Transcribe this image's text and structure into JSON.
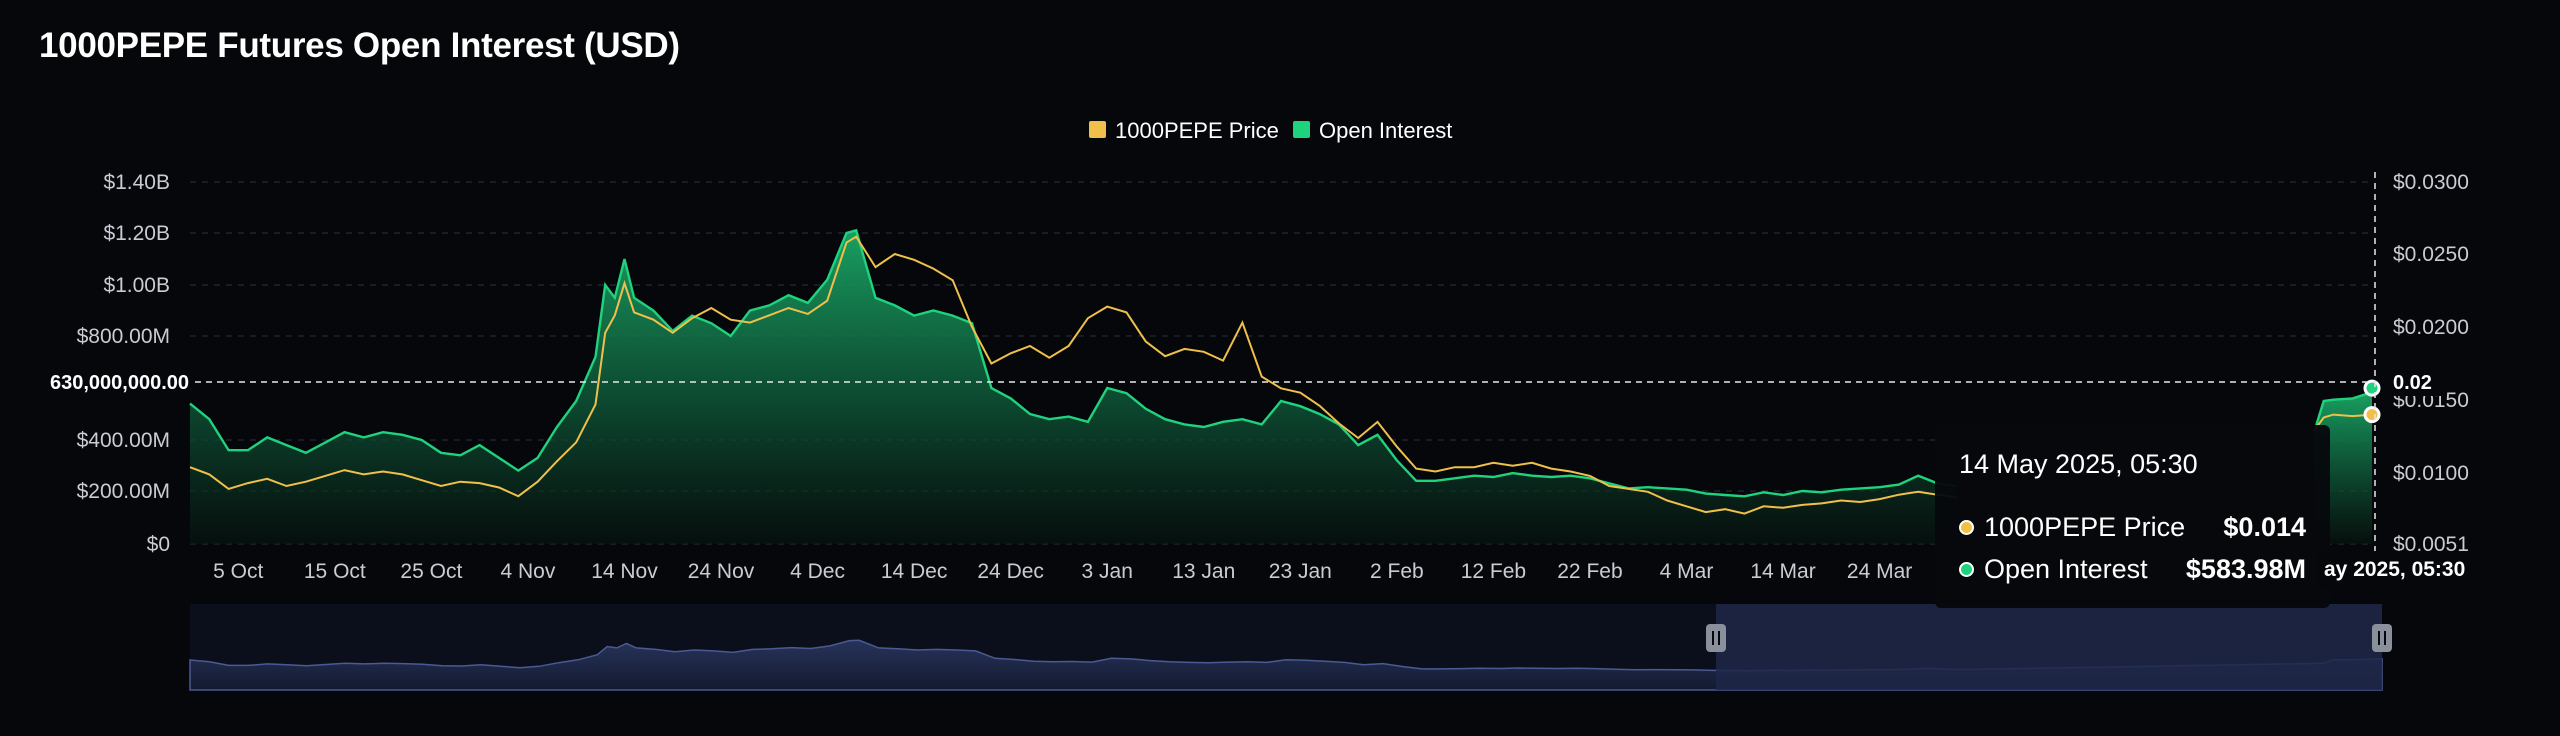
{
  "title": "1000PEPE Futures Open Interest (USD)",
  "legend": [
    {
      "label": "1000PEPE Price",
      "color": "#f0c04a",
      "shape": "square"
    },
    {
      "label": "Open Interest",
      "color": "#1fd27e",
      "shape": "square"
    }
  ],
  "tooltip": {
    "date": "14 May 2025, 05:30",
    "rows": [
      {
        "label": "1000PEPE Price",
        "value": "$0.014",
        "color": "#f0c04a"
      },
      {
        "label": "Open Interest",
        "value": "$583.98M",
        "color": "#1fd27e"
      }
    ]
  },
  "crosshair": {
    "left_label": "630,000,000.00",
    "right_label": "0.02",
    "date_label": "ay 2025, 05:30"
  },
  "chart_data": {
    "type": "line",
    "x_label": "",
    "y_label_left": "",
    "y_label_right": "",
    "x_tick_labels": [
      "5 Oct",
      "15 Oct",
      "25 Oct",
      "4 Nov",
      "14 Nov",
      "24 Nov",
      "4 Dec",
      "14 Dec",
      "24 Dec",
      "3 Jan",
      "13 Jan",
      "23 Jan",
      "2 Feb",
      "12 Feb",
      "22 Feb",
      "4 Mar",
      "14 Mar",
      "24 Mar"
    ],
    "y_left": {
      "tick_values": [
        0,
        200000000,
        400000000,
        800000000,
        1000000000,
        1200000000,
        1400000000
      ],
      "tick_labels": [
        "$0",
        "$200.00M",
        "$400.00M",
        "$800.00M",
        "$1.00B",
        "$1.20B",
        "$1.40B"
      ],
      "range": [
        0,
        1400000000
      ]
    },
    "y_right": {
      "tick_values": [
        0.0051,
        0.01,
        0.015,
        0.02,
        0.025,
        0.03
      ],
      "tick_labels": [
        "$0.0051",
        "$0.0100",
        "$0.0150",
        "$0.0200",
        "$0.0250",
        "$0.0300"
      ],
      "range": [
        0.0051,
        0.03
      ]
    },
    "grid": true,
    "legend_position": "top-center",
    "series": [
      {
        "name": "Open Interest",
        "axis": "left",
        "style": "area",
        "points": [
          [
            "30 Sep",
            540
          ],
          [
            "2 Oct",
            480
          ],
          [
            "4 Oct",
            360
          ],
          [
            "6 Oct",
            360
          ],
          [
            "8 Oct",
            410
          ],
          [
            "10 Oct",
            380
          ],
          [
            "12 Oct",
            350
          ],
          [
            "14 Oct",
            390
          ],
          [
            "16 Oct",
            430
          ],
          [
            "18 Oct",
            410
          ],
          [
            "20 Oct",
            430
          ],
          [
            "22 Oct",
            420
          ],
          [
            "24 Oct",
            400
          ],
          [
            "26 Oct",
            350
          ],
          [
            "28 Oct",
            340
          ],
          [
            "30 Oct",
            380
          ],
          [
            "1 Nov",
            330
          ],
          [
            "3 Nov",
            280
          ],
          [
            "5 Nov",
            330
          ],
          [
            "7 Nov",
            450
          ],
          [
            "9 Nov",
            550
          ],
          [
            "11 Nov",
            720
          ],
          [
            "12 Nov",
            1000
          ],
          [
            "13 Nov",
            950
          ],
          [
            "14 Nov",
            1100
          ],
          [
            "15 Nov",
            950
          ],
          [
            "17 Nov",
            900
          ],
          [
            "19 Nov",
            820
          ],
          [
            "21 Nov",
            880
          ],
          [
            "23 Nov",
            850
          ],
          [
            "25 Nov",
            800
          ],
          [
            "27 Nov",
            900
          ],
          [
            "29 Nov",
            920
          ],
          [
            "1 Dec",
            960
          ],
          [
            "3 Dec",
            930
          ],
          [
            "5 Dec",
            1020
          ],
          [
            "7 Dec",
            1200
          ],
          [
            "8 Dec",
            1210
          ],
          [
            "10 Dec",
            950
          ],
          [
            "12 Dec",
            920
          ],
          [
            "14 Dec",
            880
          ],
          [
            "16 Dec",
            900
          ],
          [
            "18 Dec",
            880
          ],
          [
            "20 Dec",
            850
          ],
          [
            "22 Dec",
            600
          ],
          [
            "24 Dec",
            560
          ],
          [
            "26 Dec",
            500
          ],
          [
            "28 Dec",
            480
          ],
          [
            "30 Dec",
            490
          ],
          [
            "1 Jan",
            470
          ],
          [
            "3 Jan",
            600
          ],
          [
            "5 Jan",
            580
          ],
          [
            "7 Jan",
            520
          ],
          [
            "9 Jan",
            480
          ],
          [
            "11 Jan",
            460
          ],
          [
            "13 Jan",
            450
          ],
          [
            "15 Jan",
            470
          ],
          [
            "17 Jan",
            480
          ],
          [
            "19 Jan",
            460
          ],
          [
            "21 Jan",
            550
          ],
          [
            "23 Jan",
            530
          ],
          [
            "25 Jan",
            500
          ],
          [
            "27 Jan",
            460
          ],
          [
            "29 Jan",
            380
          ],
          [
            "31 Jan",
            420
          ],
          [
            "2 Feb",
            320
          ],
          [
            "4 Feb",
            240
          ],
          [
            "6 Feb",
            240
          ],
          [
            "8 Feb",
            250
          ],
          [
            "10 Feb",
            260
          ],
          [
            "12 Feb",
            255
          ],
          [
            "14 Feb",
            270
          ],
          [
            "16 Feb",
            260
          ],
          [
            "18 Feb",
            255
          ],
          [
            "20 Feb",
            260
          ],
          [
            "22 Feb",
            250
          ],
          [
            "24 Feb",
            230
          ],
          [
            "26 Feb",
            210
          ],
          [
            "28 Feb",
            215
          ],
          [
            "2 Mar",
            210
          ],
          [
            "4 Mar",
            205
          ],
          [
            "6 Mar",
            190
          ],
          [
            "8 Mar",
            185
          ],
          [
            "10 Mar",
            180
          ],
          [
            "12 Mar",
            195
          ],
          [
            "14 Mar",
            185
          ],
          [
            "16 Mar",
            200
          ],
          [
            "18 Mar",
            195
          ],
          [
            "20 Mar",
            205
          ],
          [
            "22 Mar",
            210
          ],
          [
            "24 Mar",
            215
          ],
          [
            "26 Mar",
            225
          ],
          [
            "28 Mar",
            260
          ],
          [
            "30 Mar",
            230
          ],
          [
            "1 Apr",
            220
          ]
        ],
        "tail_points": [
          [
            "8 May",
            430
          ],
          [
            "9 May",
            550
          ],
          [
            "10 May",
            555
          ],
          [
            "12 May",
            560
          ],
          [
            "14 May",
            584
          ]
        ]
      },
      {
        "name": "1000PEPE Price",
        "axis": "right",
        "style": "line",
        "points": [
          [
            "30 Sep",
            0.0104
          ],
          [
            "2 Oct",
            0.0099
          ],
          [
            "4 Oct",
            0.0089
          ],
          [
            "6 Oct",
            0.0093
          ],
          [
            "8 Oct",
            0.0096
          ],
          [
            "10 Oct",
            0.0091
          ],
          [
            "12 Oct",
            0.0094
          ],
          [
            "14 Oct",
            0.0098
          ],
          [
            "16 Oct",
            0.0102
          ],
          [
            "18 Oct",
            0.0099
          ],
          [
            "20 Oct",
            0.0101
          ],
          [
            "22 Oct",
            0.0099
          ],
          [
            "24 Oct",
            0.0095
          ],
          [
            "26 Oct",
            0.0091
          ],
          [
            "28 Oct",
            0.0094
          ],
          [
            "30 Oct",
            0.0093
          ],
          [
            "1 Nov",
            0.009
          ],
          [
            "3 Nov",
            0.0084
          ],
          [
            "5 Nov",
            0.0094
          ],
          [
            "7 Nov",
            0.0108
          ],
          [
            "9 Nov",
            0.0121
          ],
          [
            "11 Nov",
            0.0147
          ],
          [
            "12 Nov",
            0.0196
          ],
          [
            "13 Nov",
            0.0208
          ],
          [
            "14 Nov",
            0.023
          ],
          [
            "15 Nov",
            0.021
          ],
          [
            "17 Nov",
            0.0205
          ],
          [
            "19 Nov",
            0.0196
          ],
          [
            "21 Nov",
            0.0206
          ],
          [
            "23 Nov",
            0.0213
          ],
          [
            "25 Nov",
            0.0205
          ],
          [
            "27 Nov",
            0.0203
          ],
          [
            "29 Nov",
            0.0208
          ],
          [
            "1 Dec",
            0.0213
          ],
          [
            "3 Dec",
            0.0209
          ],
          [
            "5 Dec",
            0.0218
          ],
          [
            "7 Dec",
            0.0258
          ],
          [
            "8 Dec",
            0.0262
          ],
          [
            "10 Dec",
            0.0241
          ],
          [
            "12 Dec",
            0.025
          ],
          [
            "14 Dec",
            0.0246
          ],
          [
            "16 Dec",
            0.024
          ],
          [
            "18 Dec",
            0.0232
          ],
          [
            "20 Dec",
            0.02
          ],
          [
            "22 Dec",
            0.0175
          ],
          [
            "24 Dec",
            0.0182
          ],
          [
            "26 Dec",
            0.0187
          ],
          [
            "28 Dec",
            0.0179
          ],
          [
            "30 Dec",
            0.0187
          ],
          [
            "1 Jan",
            0.0206
          ],
          [
            "3 Jan",
            0.0214
          ],
          [
            "5 Jan",
            0.021
          ],
          [
            "7 Jan",
            0.019
          ],
          [
            "9 Jan",
            0.018
          ],
          [
            "11 Jan",
            0.0185
          ],
          [
            "13 Jan",
            0.0183
          ],
          [
            "15 Jan",
            0.0177
          ],
          [
            "17 Jan",
            0.0203
          ],
          [
            "19 Jan",
            0.0166
          ],
          [
            "21 Jan",
            0.0158
          ],
          [
            "23 Jan",
            0.0155
          ],
          [
            "25 Jan",
            0.0146
          ],
          [
            "27 Jan",
            0.0134
          ],
          [
            "29 Jan",
            0.0124
          ],
          [
            "31 Jan",
            0.0135
          ],
          [
            "2 Feb",
            0.0118
          ],
          [
            "4 Feb",
            0.0103
          ],
          [
            "6 Feb",
            0.0101
          ],
          [
            "8 Feb",
            0.0104
          ],
          [
            "10 Feb",
            0.0104
          ],
          [
            "12 Feb",
            0.0107
          ],
          [
            "14 Feb",
            0.0105
          ],
          [
            "16 Feb",
            0.0107
          ],
          [
            "18 Feb",
            0.0103
          ],
          [
            "20 Feb",
            0.0101
          ],
          [
            "22 Feb",
            0.0098
          ],
          [
            "24 Feb",
            0.0091
          ],
          [
            "26 Feb",
            0.0089
          ],
          [
            "28 Feb",
            0.0087
          ],
          [
            "2 Mar",
            0.0081
          ],
          [
            "4 Mar",
            0.0077
          ],
          [
            "6 Mar",
            0.0073
          ],
          [
            "8 Mar",
            0.0075
          ],
          [
            "10 Mar",
            0.0072
          ],
          [
            "12 Mar",
            0.0077
          ],
          [
            "14 Mar",
            0.0076
          ],
          [
            "16 Mar",
            0.0078
          ],
          [
            "18 Mar",
            0.0079
          ],
          [
            "20 Mar",
            0.0081
          ],
          [
            "22 Mar",
            0.008
          ],
          [
            "24 Mar",
            0.0082
          ],
          [
            "26 Mar",
            0.0085
          ],
          [
            "28 Mar",
            0.0087
          ],
          [
            "30 Mar",
            0.0085
          ],
          [
            "1 Apr",
            0.0083
          ]
        ],
        "tail_points": [
          [
            "8 May",
            0.0129
          ],
          [
            "9 May",
            0.0138
          ],
          [
            "10 May",
            0.014
          ],
          [
            "12 May",
            0.0139
          ],
          [
            "14 May",
            0.014
          ]
        ]
      }
    ]
  }
}
